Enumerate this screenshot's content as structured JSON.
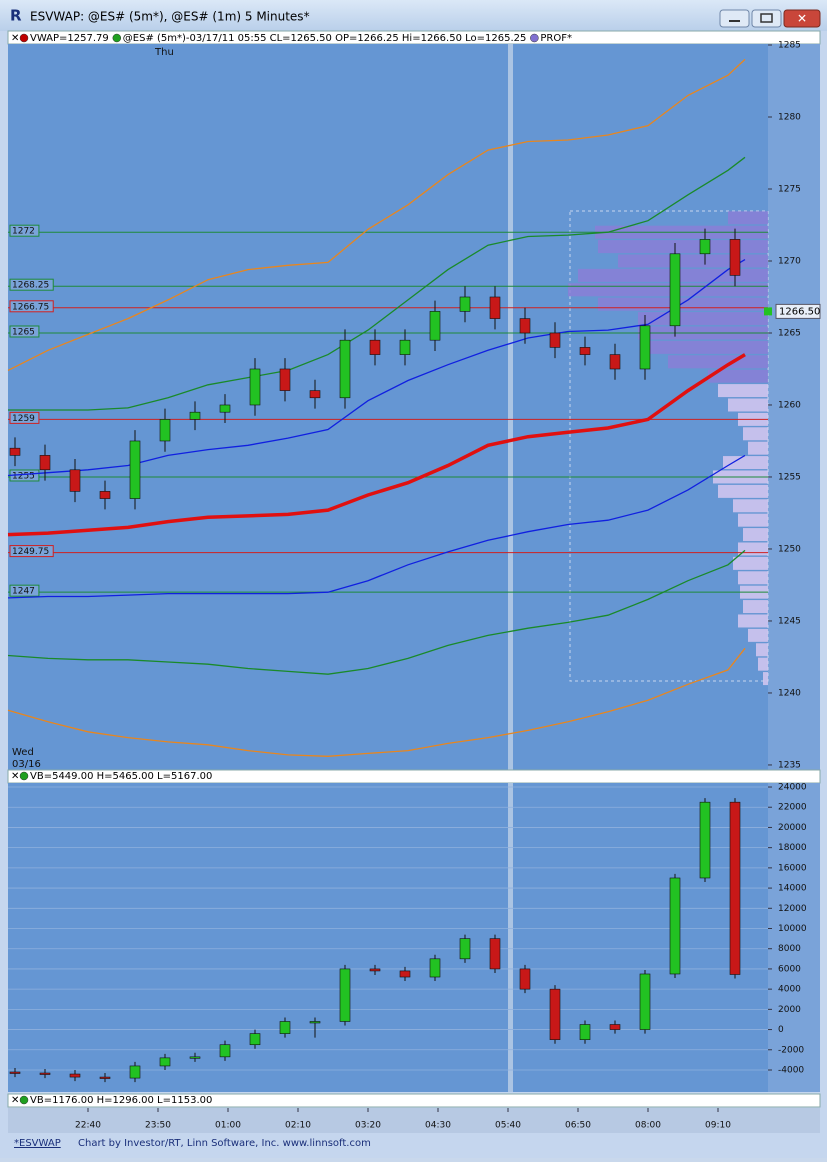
{
  "window": {
    "title": "ESVWAP: @ES# (5m*), @ES# (1m) 5 Minutes*",
    "footer": [
      "*ESVWAP",
      "Chart by Investor/RT, Linn Software, Inc. www.linnsoft.com"
    ]
  },
  "chart_data": [
    {
      "type": "candlestick",
      "legend": [
        "VWAP=1257.79",
        "@ES# (5m*)-03/17/11 05:55 CL=1265.50 OP=1266.25 Hi=1266.50 Lo=1265.25",
        "PROF*"
      ],
      "legend_colors": [
        "#c00000",
        "#20a020",
        "#8070d0"
      ],
      "annotations": [
        "Thu",
        "Wed",
        "03/16"
      ],
      "last_price": {
        "value": 1266.5,
        "label": "1266.50"
      },
      "xlim": [
        -80,
        680
      ],
      "ylim": [
        1234.65,
        1285.07
      ],
      "yticks": [
        1235,
        1240,
        1245,
        1250,
        1255,
        1260,
        1265,
        1270,
        1275,
        1280,
        1285
      ],
      "up_color": "#22c222",
      "down_color": "#c81818",
      "x": [
        -73,
        -43,
        -13,
        17,
        47,
        77,
        107,
        137,
        167,
        197,
        227,
        257,
        287,
        317,
        347,
        377,
        407,
        437,
        467,
        497,
        527,
        557,
        587,
        617,
        647
      ],
      "open": [
        1257,
        1256.5,
        1255.5,
        1254,
        1253.5,
        1257.5,
        1259,
        1259.5,
        1260,
        1262.5,
        1261,
        1260.5,
        1264.5,
        1263.5,
        1264.5,
        1266.5,
        1267.5,
        1266,
        1265,
        1264,
        1263.5,
        1262.5,
        1265.5,
        1270.5,
        1271.5
      ],
      "high": [
        1257.75,
        1257.25,
        1256.25,
        1254.75,
        1258.25,
        1259.75,
        1260.25,
        1260.75,
        1263.25,
        1263.25,
        1261.75,
        1265.25,
        1265.25,
        1265.25,
        1267.25,
        1268.25,
        1268.25,
        1266.75,
        1265.75,
        1264.75,
        1264.25,
        1266.25,
        1271.25,
        1272.25,
        1272.25
      ],
      "low": [
        1255.75,
        1254.75,
        1253.25,
        1252.75,
        1252.75,
        1256.75,
        1258.25,
        1258.75,
        1259.25,
        1260.25,
        1259.75,
        1259.75,
        1262.75,
        1262.75,
        1263.75,
        1265.75,
        1265.25,
        1264.25,
        1263.25,
        1262.75,
        1261.75,
        1261.75,
        1264.75,
        1269.75,
        1268.25
      ],
      "close": [
        1256.5,
        1255.5,
        1254,
        1253.5,
        1257.5,
        1259,
        1259.5,
        1260,
        1262.5,
        1261,
        1260.5,
        1264.5,
        1263.5,
        1264.5,
        1266.5,
        1267.5,
        1266,
        1265,
        1264,
        1263.5,
        1262.5,
        1265.5,
        1270.5,
        1271.5,
        1269
      ],
      "levels": [
        1272,
        1268.25,
        1266.75,
        1265,
        1259,
        1255,
        1249.75,
        1247
      ],
      "level_colors": [
        "#1e8a3a",
        "#1e8a3a",
        "#d02020",
        "#1e8a3a",
        "#d02020",
        "#1e8a3a",
        "#d02020",
        "#1e8a3a"
      ],
      "line_x": [
        -80,
        -40,
        0,
        40,
        80,
        120,
        160,
        200,
        240,
        280,
        320,
        360,
        400,
        440,
        480,
        520,
        560,
        600,
        640,
        657
      ],
      "lines": [
        {
          "color": "#e8861e",
          "width": 1.3,
          "values": [
            1262.4,
            1263.8,
            1264.9,
            1266.0,
            1267.3,
            1268.7,
            1269.4,
            1269.7,
            1269.9,
            1272.2,
            1273.9,
            1276.0,
            1277.7,
            1278.3,
            1278.4,
            1278.75,
            1279.4,
            1281.5,
            1282.9,
            1284.0
          ]
        },
        {
          "color": "#1a8a2a",
          "width": 1.3,
          "values": [
            1259.65,
            1259.65,
            1259.65,
            1259.8,
            1260.5,
            1261.4,
            1261.9,
            1262.4,
            1263.5,
            1265.2,
            1267.3,
            1269.4,
            1271.1,
            1271.7,
            1271.8,
            1272.0,
            1272.8,
            1274.6,
            1276.3,
            1277.2
          ]
        },
        {
          "color": "#1020e0",
          "width": 1.3,
          "values": [
            1255.1,
            1255.3,
            1255.5,
            1255.8,
            1256.5,
            1256.9,
            1257.2,
            1257.7,
            1258.3,
            1260.3,
            1261.7,
            1262.8,
            1263.8,
            1264.65,
            1265.1,
            1265.2,
            1265.6,
            1267.3,
            1269.4,
            1270.1
          ]
        },
        {
          "color": "#e01010",
          "width": 3.5,
          "values": [
            1251.0,
            1251.1,
            1251.3,
            1251.5,
            1251.9,
            1252.2,
            1252.3,
            1252.4,
            1252.7,
            1253.75,
            1254.6,
            1255.8,
            1257.2,
            1257.8,
            1258.1,
            1258.4,
            1259.0,
            1261.0,
            1262.8,
            1263.5
          ]
        },
        {
          "color": "#1020e0",
          "width": 1.3,
          "values": [
            1246.6,
            1246.7,
            1246.7,
            1246.8,
            1246.9,
            1246.9,
            1246.9,
            1246.9,
            1247.0,
            1247.8,
            1248.9,
            1249.8,
            1250.6,
            1251.2,
            1251.7,
            1252.0,
            1252.7,
            1254.1,
            1255.8,
            1256.5
          ]
        },
        {
          "color": "#1a8a2a",
          "width": 1.3,
          "values": [
            1242.6,
            1242.4,
            1242.3,
            1242.3,
            1242.15,
            1242.0,
            1241.7,
            1241.5,
            1241.3,
            1241.7,
            1242.4,
            1243.3,
            1244.0,
            1244.5,
            1244.9,
            1245.4,
            1246.5,
            1247.8,
            1248.9,
            1249.9
          ]
        },
        {
          "color": "#e8861e",
          "width": 1.3,
          "values": [
            1238.8,
            1238.0,
            1237.3,
            1236.9,
            1236.6,
            1236.4,
            1236.0,
            1235.7,
            1235.6,
            1235.8,
            1236.0,
            1236.5,
            1236.9,
            1237.4,
            1238.0,
            1238.7,
            1239.5,
            1240.6,
            1241.6,
            1243.1
          ]
        }
      ],
      "profile": {
        "prices": [
          1273,
          1272,
          1271,
          1270,
          1269,
          1268,
          1267,
          1266,
          1265,
          1264,
          1263,
          1262,
          1261,
          1260,
          1259,
          1258,
          1257,
          1256,
          1255,
          1254,
          1253,
          1252,
          1251,
          1250,
          1249,
          1248,
          1247,
          1246,
          1245,
          1244,
          1243,
          1242,
          1241
        ],
        "values": [
          40,
          173,
          170,
          150,
          190,
          200,
          170,
          130,
          130,
          120,
          100,
          60,
          50,
          40,
          30,
          25,
          20,
          45,
          55,
          50,
          35,
          30,
          25,
          30,
          35,
          30,
          28,
          25,
          30,
          20,
          12,
          10,
          5
        ],
        "colors": [
          "#8a7fd6",
          "#8a7fd6",
          "#8a7fd6",
          "#8a7fd6",
          "#8a7fd6",
          "#8a7fd6",
          "#8a7fd6",
          "#8a7fd6",
          "#8a7fd6",
          "#8a7fd6",
          "#8a7fd6",
          "#8a7fd6",
          "#d6c8f0",
          "#d6c8f0",
          "#d6c8f0",
          "#d6c8f0",
          "#d6c8f0",
          "#d6c8f0",
          "#d6c8f0",
          "#d6c8f0",
          "#d6c8f0",
          "#d6c8f0",
          "#d6c8f0",
          "#d6c8f0",
          "#d6c8f0",
          "#d6c8f0",
          "#d6c8f0",
          "#d6c8f0",
          "#d6c8f0",
          "#d6c8f0",
          "#d6c8f0",
          "#d6c8f0",
          "#d6c8f0"
        ]
      }
    },
    {
      "type": "candlestick",
      "legend": [
        "VB=5449.00 H=5465.00 L=5167.00"
      ],
      "legend_colors": [
        "#20a020"
      ],
      "bottom_legend": [
        "VB=1176.00 H=1296.00 L=1153.00"
      ],
      "xlim": [
        -80,
        680
      ],
      "xticks": [
        {
          "value": 0,
          "label": "22:40"
        },
        {
          "value": 70,
          "label": "23:50"
        },
        {
          "value": 140,
          "label": "01:00"
        },
        {
          "value": 210,
          "label": "02:10"
        },
        {
          "value": 280,
          "label": "03:20"
        },
        {
          "value": 350,
          "label": "04:30"
        },
        {
          "value": 420,
          "label": "05:40"
        },
        {
          "value": 490,
          "label": "06:50"
        },
        {
          "value": 560,
          "label": "08:00"
        },
        {
          "value": 630,
          "label": "09:10"
        }
      ],
      "ylim": [
        -5980,
        24200
      ],
      "yticks": [
        -4000,
        -2000,
        0,
        2000,
        4000,
        6000,
        8000,
        10000,
        12000,
        14000,
        16000,
        18000,
        20000,
        22000,
        24000
      ],
      "grid": true,
      "up_color": "#22c222",
      "down_color": "#c81818",
      "x": [
        -73,
        -43,
        -13,
        17,
        47,
        77,
        107,
        137,
        167,
        197,
        227,
        257,
        287,
        317,
        347,
        377,
        407,
        437,
        467,
        497,
        527,
        557,
        587,
        617,
        647
      ],
      "open": [
        -4200,
        -4300,
        -4400,
        -4700,
        -4800,
        -3600,
        -2800,
        -2700,
        -1500,
        -400,
        800,
        800,
        6000,
        5800,
        5200,
        7000,
        9000,
        6000,
        4000,
        -1000,
        500,
        0,
        5500,
        15000,
        22500
      ],
      "high": [
        -3800,
        -3900,
        -4000,
        -4300,
        -3200,
        -2400,
        -2300,
        -1100,
        0,
        1200,
        1200,
        6400,
        6400,
        6200,
        7400,
        9400,
        9400,
        6400,
        4400,
        900,
        900,
        5900,
        15400,
        22900,
        22900
      ],
      "low": [
        -4700,
        -4800,
        -5100,
        -5200,
        -5200,
        -4000,
        -3200,
        -3100,
        -1900,
        -800,
        -800,
        400,
        5400,
        4800,
        4800,
        6600,
        5600,
        3600,
        -1400,
        -1400,
        -400,
        -400,
        5100,
        14600,
        5049
      ],
      "close": [
        -4300,
        -4400,
        -4700,
        -4800,
        -3600,
        -2800,
        -2700,
        -1500,
        -400,
        800,
        800,
        6000,
        5800,
        5200,
        7000,
        9000,
        6000,
        4000,
        -1000,
        500,
        0,
        5500,
        15000,
        22500,
        5449
      ]
    }
  ]
}
